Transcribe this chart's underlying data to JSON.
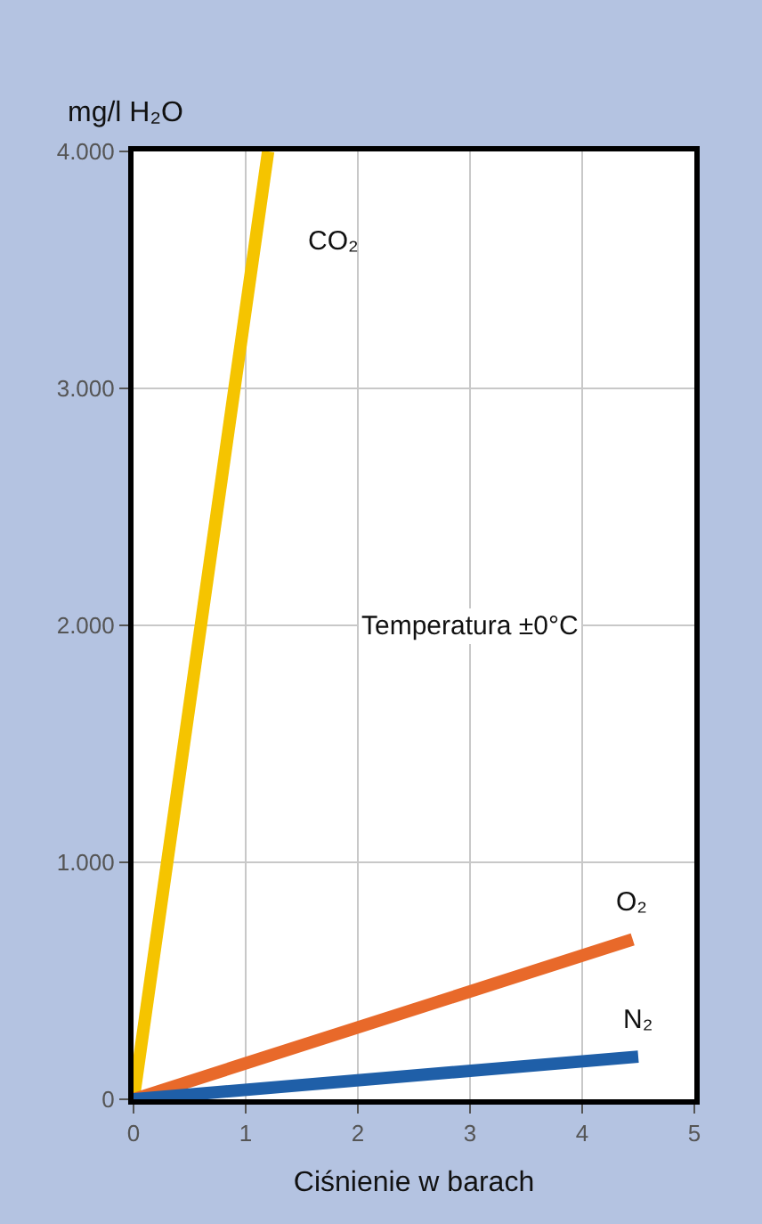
{
  "chart_data": {
    "type": "line",
    "ylabel": "mg/l H₂O",
    "xlabel": "Ciśnienie w barach",
    "annotations": [
      "Temperatura ±0°C"
    ],
    "series": [
      {
        "name": "CO₂",
        "color": "#f5c400",
        "x": [
          0,
          1.2
        ],
        "values": [
          0,
          4000
        ]
      },
      {
        "name": "O₂",
        "color": "#e8692a",
        "x": [
          0,
          4.45
        ],
        "values": [
          0,
          675
        ]
      },
      {
        "name": "N₂",
        "color": "#1f5fa8",
        "x": [
          0,
          4.5
        ],
        "values": [
          0,
          180
        ]
      }
    ],
    "xlim": [
      0,
      5
    ],
    "xticks": [
      0,
      1,
      2,
      3,
      4,
      5
    ],
    "ylim": [
      0,
      4000
    ],
    "yticks": [
      0,
      {
        "value": 1000,
        "label": "1.000"
      },
      {
        "value": 2000,
        "label": "2.000"
      },
      {
        "value": 3000,
        "label": "3.000"
      },
      {
        "value": 4000,
        "label": "4.000"
      }
    ],
    "grid": true,
    "legend": false,
    "marker": "none",
    "line_style": "solid"
  }
}
